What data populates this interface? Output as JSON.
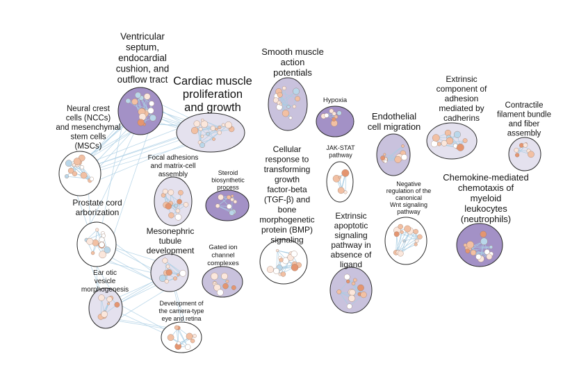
{
  "colors": {
    "cluster_light": "#e4e1ee",
    "cluster_mid": "#c9c2dd",
    "cluster_dark": "#a391c6",
    "cluster_stroke": "#2a2a2a",
    "edge": "#a9cde3",
    "node_light": "#fbe7dc",
    "node_mid": "#f2c0a3",
    "node_dark": "#e49570",
    "node_blue": "#b9d7ea",
    "node_white": "#ffffff"
  },
  "clusters": [
    {
      "id": "vsec",
      "shade": "dark",
      "label_lines": [
        "Ventricular",
        "septum,",
        "endocardial",
        "cushion, and",
        "outflow tract"
      ]
    },
    {
      "id": "cmpg",
      "shade": "light",
      "label_lines": [
        "Cardiac muscle",
        "proliferation",
        "and growth"
      ]
    },
    {
      "id": "ncc",
      "shade": "white",
      "label_lines": [
        "Neural crest",
        "cells (NCCs)",
        "and mesenchymal",
        "stem cells",
        "(MSCs)"
      ]
    },
    {
      "id": "smap",
      "shade": "mid",
      "label_lines": [
        "Smooth muscle",
        "action",
        "potentials"
      ]
    },
    {
      "id": "hyp",
      "shade": "dark",
      "label_lines": [
        "Hypoxia"
      ]
    },
    {
      "id": "ecm",
      "shade": "mid",
      "label_lines": [
        "Endothelial",
        "cell migration"
      ]
    },
    {
      "id": "ecc",
      "shade": "light",
      "label_lines": [
        "Extrinsic",
        "component of",
        "adhesion",
        "mediated by",
        "cadherins"
      ]
    },
    {
      "id": "cfb",
      "shade": "light",
      "label_lines": [
        "Contractile",
        "filament bundle",
        "and fiber",
        "assembly"
      ]
    },
    {
      "id": "fam",
      "shade": "light",
      "label_lines": [
        "Focal adhesions",
        "and matrix-cell",
        "assembly"
      ]
    },
    {
      "id": "sbp",
      "shade": "dark",
      "label_lines": [
        "Steroid",
        "biosynthetic",
        "process"
      ]
    },
    {
      "id": "tgf",
      "shade": "white",
      "label_lines": [
        "Cellular",
        "response to",
        "transforming",
        "growth",
        "factor-beta",
        "(TGF-β) and",
        "bone",
        "morphogenetic",
        "protein (BMP)",
        "signaling"
      ]
    },
    {
      "id": "jak",
      "shade": "white",
      "label_lines": [
        "JAK-STAT",
        "pathway"
      ]
    },
    {
      "id": "wnt",
      "shade": "white",
      "label_lines": [
        "Negative",
        "regulation of the",
        "canonical",
        "Wnt signaling",
        "pathway"
      ]
    },
    {
      "id": "cmc",
      "shade": "dark",
      "label_lines": [
        "Chemokine-mediated",
        "chemotaxis of",
        "myeloid",
        "leukocytes",
        "(neutrophils)"
      ]
    },
    {
      "id": "pca",
      "shade": "white",
      "label_lines": [
        "Prostate cord",
        "arborization"
      ]
    },
    {
      "id": "mtd",
      "shade": "light",
      "label_lines": [
        "Mesonephric",
        "tubule",
        "development"
      ]
    },
    {
      "id": "gic",
      "shade": "mid",
      "label_lines": [
        "Gated ion",
        "channel",
        "complexes"
      ]
    },
    {
      "id": "eap",
      "shade": "mid",
      "label_lines": [
        "Extrinsic",
        "apoptotic",
        "signaling",
        "pathway in",
        "absence of",
        "ligand"
      ]
    },
    {
      "id": "eom",
      "shade": "light",
      "label_lines": [
        "Ear otic",
        "vesicle",
        "morphogenesis"
      ]
    },
    {
      "id": "dce",
      "shade": "white",
      "label_lines": [
        "Development of",
        "the camera-type",
        "eye and retina"
      ]
    }
  ]
}
